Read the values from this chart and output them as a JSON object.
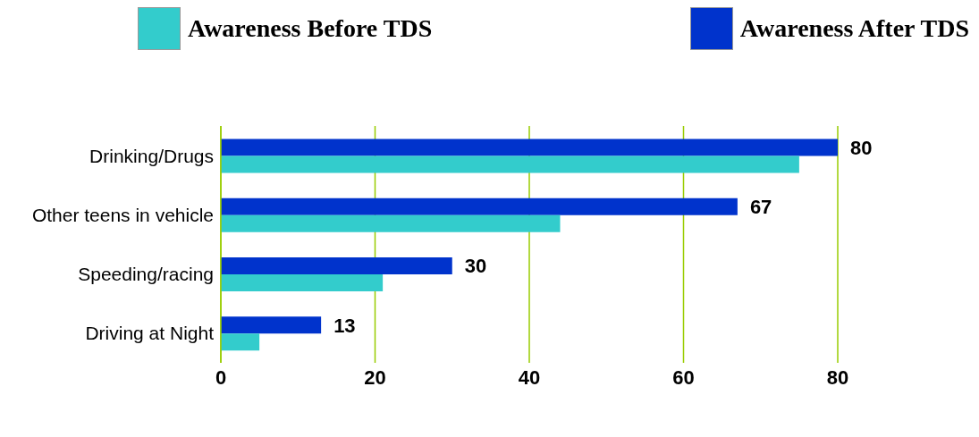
{
  "chart_data": {
    "type": "bar",
    "orientation": "horizontal",
    "categories": [
      "Drinking/Drugs",
      "Other teens in vehicle",
      "Speeding/racing",
      "Driving at Night"
    ],
    "series": [
      {
        "name": "Awareness Before TDS",
        "color": "#33cccc",
        "values": [
          75,
          44,
          21,
          5
        ]
      },
      {
        "name": "Awareness After TDS",
        "color": "#0033cc",
        "values": [
          80,
          67,
          30,
          13
        ],
        "value_labels": [
          "80",
          "67",
          "30",
          "13"
        ]
      }
    ],
    "xlim": [
      0,
      80
    ],
    "xticks": [
      0,
      20,
      40,
      60,
      80
    ],
    "grid": "x",
    "legend": "top"
  }
}
